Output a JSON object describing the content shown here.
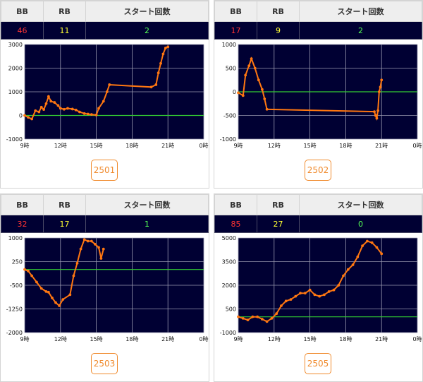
{
  "header_labels": {
    "bb": "BB",
    "rb": "RB",
    "starts": "スタート回数"
  },
  "colors": {
    "bb": "#ff3333",
    "rb": "#ffff33",
    "starts": "#55ff55",
    "line": "#ff7711",
    "baseline": "#33cc33",
    "plot_bg": "#000033",
    "button": "#f08a2c"
  },
  "panels": [
    {
      "machine": "2501",
      "bb": "46",
      "rb": "11",
      "starts": "2"
    },
    {
      "machine": "2502",
      "bb": "17",
      "rb": "9",
      "starts": "2"
    },
    {
      "machine": "2503",
      "bb": "32",
      "rb": "17",
      "starts": "1"
    },
    {
      "machine": "2505",
      "bb": "85",
      "rb": "27",
      "starts": "0"
    }
  ],
  "chart_data": [
    {
      "type": "line",
      "x_ticks": [
        "9時",
        "12時",
        "15時",
        "18時",
        "21時",
        "0時"
      ],
      "xlim": [
        9,
        24
      ],
      "y_ticks": [
        "3000",
        "2000",
        "1000",
        "0",
        "-1000"
      ],
      "ylim": [
        -1000,
        3000
      ],
      "baseline": 0,
      "grid": true,
      "series": [
        {
          "x": [
            9,
            9.3,
            9.6,
            9.9,
            10.2,
            10.4,
            10.6,
            10.8,
            11,
            11.2,
            11.5,
            11.8,
            12,
            12.3,
            12.6,
            13,
            13.3,
            13.6,
            14,
            14.3,
            14.6,
            15,
            15.2,
            15.6,
            15.9,
            16.1,
            19.6,
            20,
            20.2,
            20.4,
            20.6,
            20.8,
            21
          ],
          "y": [
            0,
            -80,
            -150,
            200,
            150,
            350,
            250,
            500,
            800,
            600,
            550,
            420,
            300,
            260,
            300,
            270,
            230,
            150,
            80,
            60,
            40,
            20,
            300,
            600,
            1000,
            1300,
            1200,
            1300,
            1800,
            2200,
            2600,
            2850,
            2900
          ]
        }
      ]
    },
    {
      "type": "line",
      "x_ticks": [
        "9時",
        "12時",
        "15時",
        "18時",
        "21時",
        "0時"
      ],
      "xlim": [
        9,
        24
      ],
      "y_ticks": [
        "1000",
        "500",
        "0",
        "-500",
        "-1000"
      ],
      "ylim": [
        -1000,
        1000
      ],
      "baseline": 0,
      "grid": true,
      "series": [
        {
          "x": [
            9,
            9.4,
            9.6,
            9.9,
            10.1,
            10.4,
            10.7,
            11,
            11.2,
            11.4,
            20.4,
            20.5,
            20.6,
            20.7,
            20.8,
            20.9,
            21
          ],
          "y": [
            -20,
            -80,
            350,
            550,
            700,
            500,
            250,
            50,
            -150,
            -370,
            -420,
            -500,
            -560,
            -400,
            0,
            100,
            250
          ]
        }
      ]
    },
    {
      "type": "line",
      "x_ticks": [
        "9時",
        "12時",
        "15時",
        "18時",
        "21時",
        "0時"
      ],
      "xlim": [
        9,
        24
      ],
      "y_ticks": [
        "1000",
        "250",
        "-500",
        "-1250",
        "-2000"
      ],
      "ylim": [
        -2000,
        1000
      ],
      "baseline": 0,
      "grid": true,
      "series": [
        {
          "x": [
            9,
            9.3,
            9.6,
            10,
            10.4,
            10.8,
            11,
            11.3,
            11.6,
            11.9,
            12.2,
            12.8,
            13.1,
            13.4,
            13.7,
            14,
            14.3,
            14.6,
            14.9,
            15.2,
            15.4,
            15.6
          ],
          "y": [
            0,
            -50,
            -200,
            -400,
            -600,
            -700,
            -720,
            -900,
            -1050,
            -1150,
            -950,
            -800,
            -200,
            200,
            650,
            950,
            900,
            900,
            800,
            700,
            350,
            650
          ]
        }
      ]
    },
    {
      "type": "line",
      "x_ticks": [
        "9時",
        "12時",
        "15時",
        "18時",
        "21時",
        "0時"
      ],
      "xlim": [
        9,
        24
      ],
      "y_ticks": [
        "5000",
        "3500",
        "2000",
        "500",
        "-1000"
      ],
      "ylim": [
        -1000,
        5000
      ],
      "baseline": 0,
      "grid": true,
      "series": [
        {
          "x": [
            9,
            9.4,
            9.8,
            10.2,
            10.6,
            11,
            11.4,
            11.8,
            12.2,
            12.6,
            13,
            13.4,
            13.8,
            14.2,
            14.6,
            15,
            15.4,
            15.8,
            16.2,
            16.6,
            17,
            17.4,
            17.8,
            18.2,
            18.6,
            19,
            19.4,
            19.8,
            20.2,
            20.6,
            21
          ],
          "y": [
            0,
            -100,
            -200,
            0,
            0,
            -150,
            -300,
            -100,
            200,
            700,
            1000,
            1100,
            1300,
            1500,
            1500,
            1700,
            1400,
            1300,
            1400,
            1600,
            1700,
            2000,
            2600,
            3000,
            3300,
            3800,
            4500,
            4800,
            4700,
            4400,
            4000
          ]
        }
      ]
    }
  ]
}
